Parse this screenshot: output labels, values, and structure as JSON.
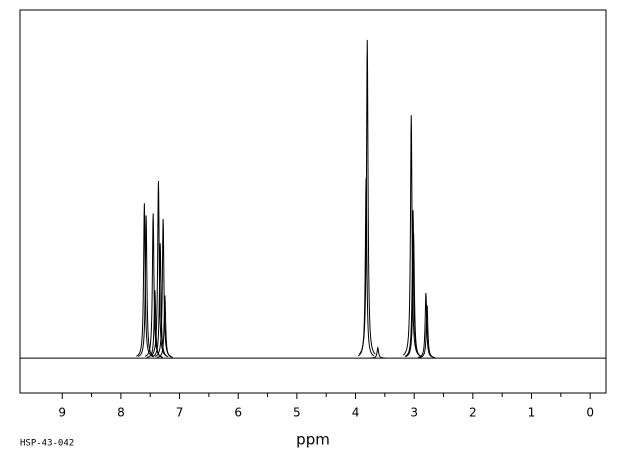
{
  "chart_data": {
    "type": "spectrum",
    "x_label": "ppm",
    "sample_code": "HSP-43-042",
    "xlim": [
      9.72,
      -0.27
    ],
    "ylim": [
      -10,
      100
    ],
    "xticks": [
      9,
      8,
      7,
      6,
      5,
      4,
      3,
      2,
      1,
      0
    ],
    "color": "#000000",
    "peaks": {
      "x": [
        7.6,
        7.57,
        7.45,
        7.42,
        7.36,
        7.33,
        7.28,
        7.25,
        3.82,
        3.8,
        3.62,
        3.05,
        3.02,
        3.01,
        2.8,
        2.78
      ],
      "values": [
        44.5,
        41,
        41.6,
        19.5,
        50.9,
        33,
        40,
        18,
        51.7,
        91.4,
        3,
        69.8,
        42.5,
        35.9,
        18.7,
        15.2
      ]
    }
  }
}
